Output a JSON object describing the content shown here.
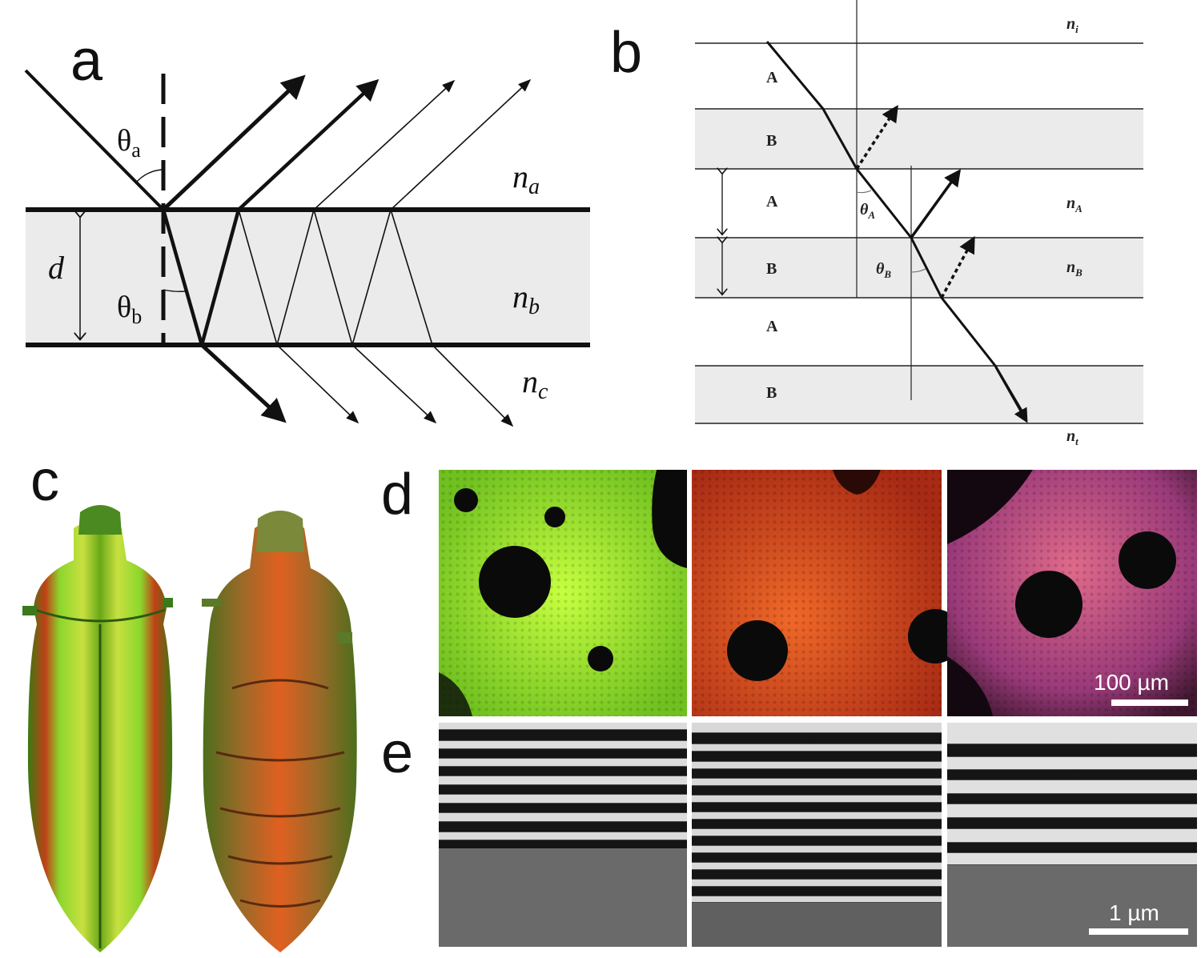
{
  "figure": {
    "panels": {
      "a": {
        "letter": "a",
        "labels": {
          "theta_a": "θ",
          "theta_a_sub": "a",
          "theta_b": "θ",
          "theta_b_sub": "b",
          "d": "d",
          "n_a": "n",
          "n_a_sub": "a",
          "n_b": "n",
          "n_b_sub": "b",
          "n_c": "n",
          "n_c_sub": "c"
        }
      },
      "b": {
        "letter": "b",
        "layers": [
          "A",
          "B",
          "A",
          "B",
          "A",
          "B"
        ],
        "labels": {
          "n_i": "n",
          "n_i_sub": "i",
          "n_A": "n",
          "n_A_sub": "A",
          "n_B": "n",
          "n_B_sub": "B",
          "n_t": "n",
          "n_t_sub": "t",
          "theta_A": "θ",
          "theta_A_sub": "A",
          "theta_B": "θ",
          "theta_B_sub": "B"
        }
      },
      "c": {
        "letter": "c"
      },
      "d": {
        "letter": "d",
        "scalebar": "100 µm",
        "colors": [
          "#8ee02a",
          "#d8401e",
          "#c04a8a"
        ]
      },
      "e": {
        "letter": "e",
        "scalebar": "1 µm"
      }
    }
  }
}
